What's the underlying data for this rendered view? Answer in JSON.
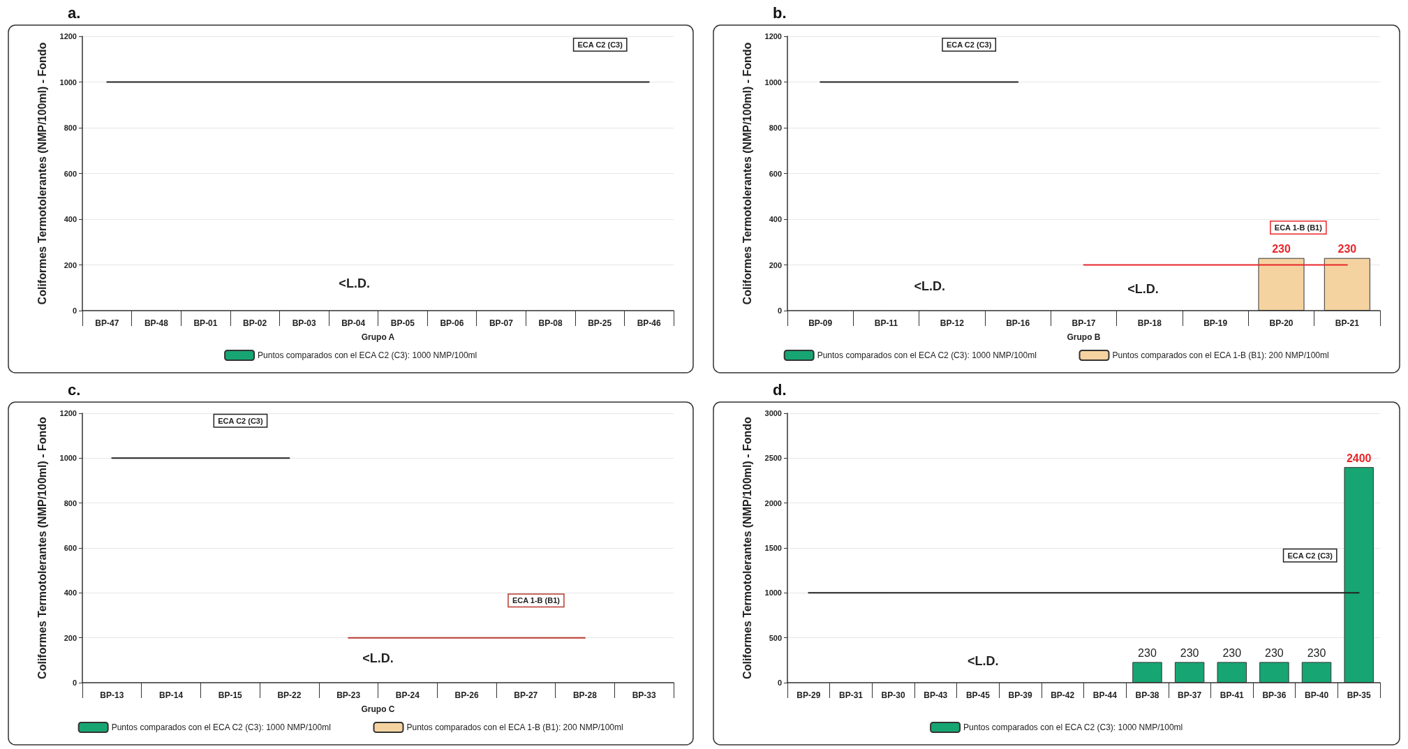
{
  "chart_data": [
    {
      "type": "bar",
      "title": "a.",
      "xlabel": "Grupo A",
      "ylabel": "Coliformes Termotolerantes (NMP/100ml) - Fondo",
      "categories": [
        "BP-47",
        "BP-48",
        "BP-01",
        "BP-02",
        "BP-03",
        "BP-04",
        "BP-05",
        "BP-06",
        "BP-07",
        "BP-08",
        "BP-25",
        "BP-46"
      ],
      "series": [
        {
          "name": "Puntos comparados con el ECA C2 (C3): 1000 NMP/100ml",
          "color": "#17a673",
          "values": [
            null,
            null,
            null,
            null,
            null,
            null,
            null,
            null,
            null,
            null,
            null,
            null
          ]
        },
        {
          "name": "ECA C2 (C3)",
          "type": "line",
          "color": "#222222",
          "values": [
            1000,
            1000,
            1000,
            1000,
            1000,
            1000,
            1000,
            1000,
            1000,
            1000,
            1000,
            1000
          ]
        }
      ],
      "annotations": [
        "<L.D."
      ],
      "ylim": [
        0,
        1200
      ],
      "yticks": [
        0,
        200,
        400,
        600,
        800,
        1000,
        1200
      ],
      "grid": "y",
      "legend": "bottom",
      "marker": "none",
      "line_style": "solid"
    },
    {
      "type": "bar",
      "title": "b.",
      "xlabel": "Grupo B",
      "ylabel": "Coliformes Termotolerantes (NMP/100ml) - Fondo",
      "categories": [
        "BP-09",
        "BP-11",
        "BP-12",
        "BP-16",
        "BP-17",
        "BP-18",
        "BP-19",
        "BP-20",
        "BP-21"
      ],
      "series": [
        {
          "name": "Puntos comparados con el ECA C2 (C3): 1000 NMP/100ml",
          "color": "#17a673",
          "values": [
            null,
            null,
            null,
            null,
            null,
            null,
            null,
            null,
            null
          ]
        },
        {
          "name": "Puntos comparados con el ECA 1-B (B1): 200 NMP/100ml",
          "color": "#f5d3a0",
          "values": [
            null,
            null,
            null,
            null,
            null,
            null,
            null,
            230,
            230
          ],
          "value_labels": [
            null,
            null,
            null,
            null,
            null,
            null,
            null,
            "230",
            "230"
          ]
        },
        {
          "name": "ECA C2 (C3)",
          "type": "line",
          "color": "#222222",
          "values": [
            1000,
            1000,
            1000,
            1000,
            null,
            null,
            null,
            null,
            null
          ]
        },
        {
          "name": "ECA 1-B (B1)",
          "type": "line",
          "color": "#e8262a",
          "values": [
            null,
            null,
            null,
            null,
            200,
            200,
            200,
            200,
            200
          ]
        }
      ],
      "annotations": [
        "<L.D.",
        "<L.D."
      ],
      "ylim": [
        0,
        1200
      ],
      "yticks": [
        0,
        200,
        400,
        600,
        800,
        1000,
        1200
      ],
      "grid": "y",
      "legend": "bottom",
      "marker": "none",
      "line_style": "solid"
    },
    {
      "type": "bar",
      "title": "c.",
      "xlabel": "Grupo C",
      "ylabel": "Coliformes Termotolerantes (NMP/100ml) - Fondo",
      "categories": [
        "BP-13",
        "BP-14",
        "BP-15",
        "BP-22",
        "BP-23",
        "BP-24",
        "BP-26",
        "BP-27",
        "BP-28",
        "BP-33"
      ],
      "series": [
        {
          "name": "Puntos comparados con el ECA C2 (C3): 1000 NMP/100ml",
          "color": "#17a673",
          "values": [
            null,
            null,
            null,
            null,
            null,
            null,
            null,
            null,
            null,
            null
          ]
        },
        {
          "name": "Puntos comparados con el ECA 1-B (B1): 200 NMP/100ml",
          "color": "#f5d3a0",
          "values": [
            null,
            null,
            null,
            null,
            null,
            null,
            null,
            null,
            null,
            null
          ]
        },
        {
          "name": "ECA C2 (C3)",
          "type": "line",
          "color": "#222222",
          "values": [
            1000,
            1000,
            1000,
            1000,
            null,
            null,
            null,
            null,
            null,
            null
          ]
        },
        {
          "name": "ECA 1-B (B1)",
          "type": "line",
          "color": "#b8392e",
          "values": [
            null,
            null,
            null,
            null,
            200,
            200,
            200,
            200,
            200,
            null
          ]
        }
      ],
      "annotations": [
        "<L.D."
      ],
      "ylim": [
        0,
        1200
      ],
      "yticks": [
        0,
        200,
        400,
        600,
        800,
        1000,
        1200
      ],
      "grid": "y",
      "legend": "bottom",
      "marker": "none",
      "line_style": "solid"
    },
    {
      "type": "bar",
      "title": "d.",
      "ylabel": "Coliformes Termotolerantes (NMP/100ml) - Fondo",
      "categories": [
        "BP-29",
        "BP-31",
        "BP-30",
        "BP-43",
        "BP-45",
        "BP-39",
        "BP-42",
        "BP-44",
        "BP-38",
        "BP-37",
        "BP-41",
        "BP-36",
        "BP-40",
        "BP-35"
      ],
      "series": [
        {
          "name": "Puntos comparados con el ECA C2 (C3): 1000 NMP/100ml",
          "color": "#17a673",
          "values": [
            null,
            null,
            null,
            null,
            null,
            null,
            null,
            null,
            230,
            230,
            230,
            230,
            230,
            2400
          ],
          "value_labels": [
            null,
            null,
            null,
            null,
            null,
            null,
            null,
            null,
            "230",
            "230",
            "230",
            "230",
            "230",
            "2400"
          ]
        },
        {
          "name": "ECA C2 (C3)",
          "type": "line",
          "color": "#222222",
          "values": [
            1000,
            1000,
            1000,
            1000,
            1000,
            1000,
            1000,
            1000,
            1000,
            1000,
            1000,
            1000,
            1000,
            1000
          ]
        }
      ],
      "annotations": [
        "<L.D."
      ],
      "ylim": [
        0,
        3000
      ],
      "yticks": [
        0,
        500,
        1000,
        1500,
        2000,
        2500,
        3000
      ],
      "grid": "y",
      "legend": "bottom",
      "marker": "none",
      "line_style": "solid"
    }
  ]
}
